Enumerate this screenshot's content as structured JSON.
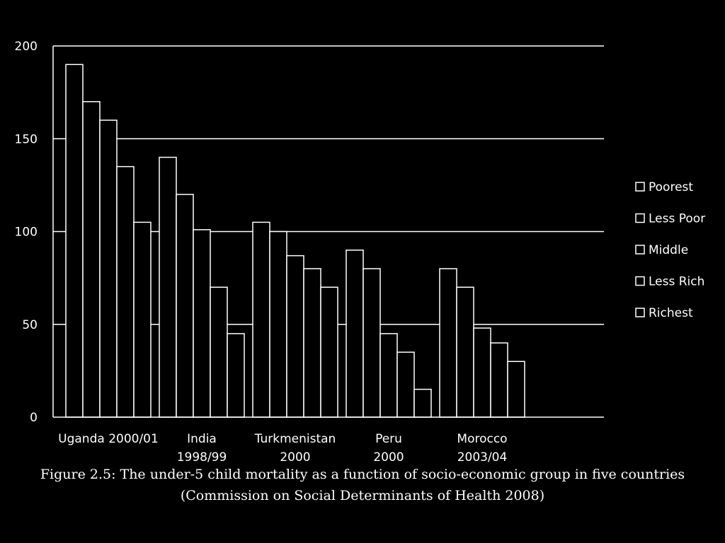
{
  "chart_data": {
    "type": "bar",
    "categories": [
      [
        "Uganda 2000/01"
      ],
      [
        "India",
        "1998/99"
      ],
      [
        "Turkmenistan",
        "2000"
      ],
      [
        "Peru",
        "2000"
      ],
      [
        "Morocco",
        "2003/04"
      ]
    ],
    "series": [
      {
        "name": "Poorest",
        "values": [
          190,
          140,
          105,
          90,
          80
        ]
      },
      {
        "name": "Less Poor",
        "values": [
          170,
          120,
          100,
          80,
          70
        ]
      },
      {
        "name": "Middle",
        "values": [
          160,
          101,
          87,
          45,
          48
        ]
      },
      {
        "name": "Less Rich",
        "values": [
          135,
          70,
          80,
          35,
          40
        ]
      },
      {
        "name": "Richest",
        "values": [
          105,
          45,
          70,
          15,
          30
        ]
      }
    ],
    "ylim": [
      0,
      200
    ],
    "yticks": [
      0,
      50,
      100,
      150,
      200
    ],
    "grid": true,
    "legend_position": "right",
    "colors": {
      "background": "#000000",
      "foreground": "#ffffff"
    }
  },
  "caption": {
    "line1": "Figure 2.5: The under-5 child mortality as a function of socio-economic group in five countries",
    "line2": "(Commission on Social Determinants of Health 2008)"
  }
}
